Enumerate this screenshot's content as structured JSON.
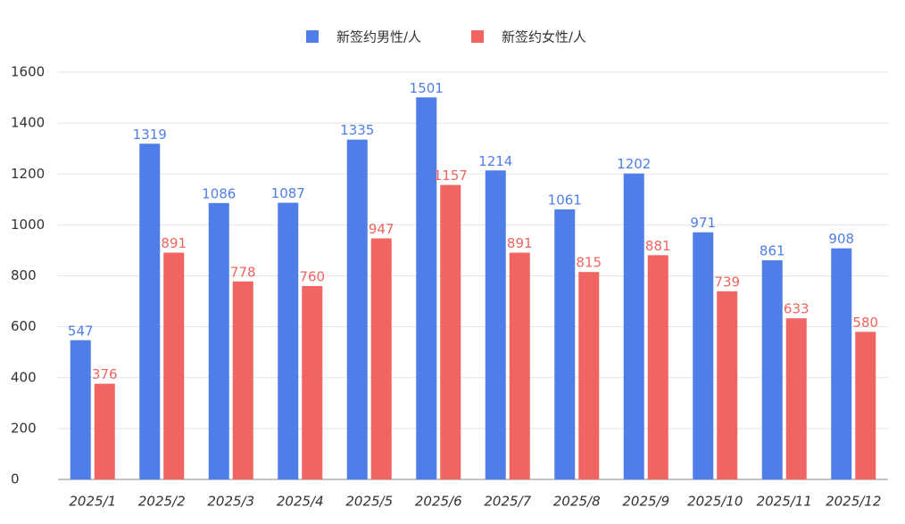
{
  "chart_data": {
    "type": "bar",
    "categories": [
      "2025/1",
      "2025/2",
      "2025/3",
      "2025/4",
      "2025/5",
      "2025/6",
      "2025/7",
      "2025/8",
      "2025/9",
      "2025/10",
      "2025/11",
      "2025/12"
    ],
    "series": [
      {
        "name": "新签约男性/人",
        "color": "#4f7ee8",
        "values": [
          547,
          1319,
          1086,
          1087,
          1335,
          1501,
          1214,
          1061,
          1202,
          971,
          861,
          908
        ]
      },
      {
        "name": "新签约女性/人",
        "color": "#f06461",
        "values": [
          376,
          891,
          778,
          760,
          947,
          1157,
          891,
          815,
          881,
          739,
          633,
          580
        ]
      }
    ],
    "ylim": [
      0,
      1600
    ],
    "yticks": [
      0,
      200,
      400,
      600,
      800,
      1000,
      1200,
      1400,
      1600
    ],
    "grid": true,
    "legend": "top"
  }
}
